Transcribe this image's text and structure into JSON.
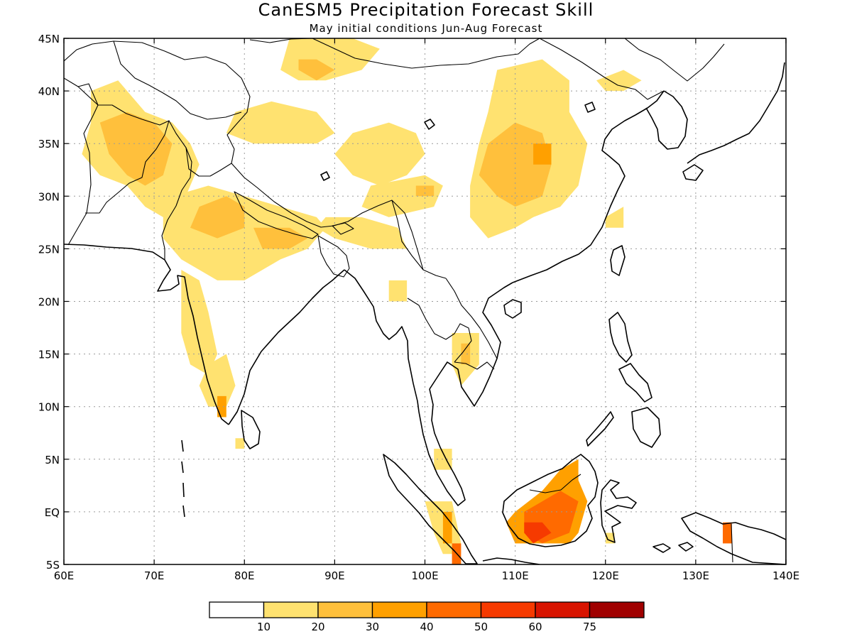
{
  "title": "CanESM5 Precipitation Forecast Skill",
  "subtitle": "May initial conditions  Jun-Aug Forecast",
  "map": {
    "lon_range": [
      60,
      140
    ],
    "lat_range": [
      -5,
      45
    ],
    "lon_ticks": [
      {
        "value": 60,
        "label": "60E"
      },
      {
        "value": 70,
        "label": "70E"
      },
      {
        "value": 80,
        "label": "80E"
      },
      {
        "value": 90,
        "label": "90E"
      },
      {
        "value": 100,
        "label": "100E"
      },
      {
        "value": 110,
        "label": "110E"
      },
      {
        "value": 120,
        "label": "120E"
      },
      {
        "value": 130,
        "label": "130E"
      },
      {
        "value": 140,
        "label": "140E"
      }
    ],
    "lat_ticks": [
      {
        "value": 45,
        "label": "45N"
      },
      {
        "value": 40,
        "label": "40N"
      },
      {
        "value": 35,
        "label": "35N"
      },
      {
        "value": 30,
        "label": "30N"
      },
      {
        "value": 25,
        "label": "25N"
      },
      {
        "value": 20,
        "label": "20N"
      },
      {
        "value": 15,
        "label": "15N"
      },
      {
        "value": 10,
        "label": "10N"
      },
      {
        "value": 5,
        "label": "5N"
      },
      {
        "value": 0,
        "label": "EQ"
      },
      {
        "value": -5,
        "label": "5S"
      }
    ],
    "grid": true
  },
  "legend": {
    "colors": [
      "#ffffff",
      "#ffe270",
      "#ffc03c",
      "#ffa000",
      "#ff6a00",
      "#f63a00",
      "#d81400",
      "#a00000"
    ],
    "labels": [
      "10",
      "20",
      "30",
      "40",
      "50",
      "60",
      "75"
    ]
  },
  "skill_regions": [
    {
      "level": 1,
      "ring": [
        [
          63,
          40
        ],
        [
          66,
          41
        ],
        [
          69,
          38
        ],
        [
          72,
          37
        ],
        [
          74,
          35
        ],
        [
          75,
          33
        ],
        [
          74,
          31
        ],
        [
          73,
          29
        ],
        [
          71,
          28
        ],
        [
          69,
          29
        ],
        [
          67,
          31
        ],
        [
          64,
          32
        ],
        [
          62,
          34
        ],
        [
          63,
          37
        ]
      ]
    },
    {
      "level": 2,
      "ring": [
        [
          64,
          37
        ],
        [
          67,
          38
        ],
        [
          70,
          37
        ],
        [
          72,
          35
        ],
        [
          71,
          32
        ],
        [
          69,
          31
        ],
        [
          67,
          32
        ],
        [
          65,
          34
        ]
      ]
    },
    {
      "level": 1,
      "ring": [
        [
          72,
          30
        ],
        [
          76,
          31
        ],
        [
          80,
          30
        ],
        [
          84,
          29
        ],
        [
          88,
          28
        ],
        [
          89,
          27
        ],
        [
          87,
          25
        ],
        [
          84,
          24
        ],
        [
          80,
          22
        ],
        [
          77,
          22
        ],
        [
          73,
          24
        ],
        [
          71,
          26
        ],
        [
          71,
          28
        ]
      ]
    },
    {
      "level": 2,
      "ring": [
        [
          75,
          29
        ],
        [
          78,
          30
        ],
        [
          80,
          29
        ],
        [
          80,
          27
        ],
        [
          77,
          26
        ],
        [
          74,
          27
        ]
      ]
    },
    {
      "level": 2,
      "ring": [
        [
          81,
          27
        ],
        [
          85,
          27
        ],
        [
          87,
          26
        ],
        [
          85,
          25
        ],
        [
          82,
          25
        ]
      ]
    },
    {
      "level": 1,
      "ring": [
        [
          73,
          23
        ],
        [
          75,
          22
        ],
        [
          76,
          19
        ],
        [
          77,
          15
        ],
        [
          76,
          13
        ],
        [
          74,
          14
        ],
        [
          73,
          17
        ],
        [
          73,
          21
        ]
      ]
    },
    {
      "level": 1,
      "ring": [
        [
          76,
          14
        ],
        [
          78,
          15
        ],
        [
          79,
          12
        ],
        [
          78,
          10
        ],
        [
          76,
          10
        ],
        [
          75,
          12
        ]
      ]
    },
    {
      "level": 3,
      "ring": [
        [
          77,
          11
        ],
        [
          78,
          11
        ],
        [
          78,
          9
        ],
        [
          77,
          9
        ]
      ]
    },
    {
      "level": 1,
      "ring": [
        [
          79,
          7
        ],
        [
          80,
          7
        ],
        [
          80,
          6
        ],
        [
          79,
          6
        ]
      ]
    },
    {
      "level": 1,
      "ring": [
        [
          85,
          45
        ],
        [
          92,
          45
        ],
        [
          95,
          44
        ],
        [
          93,
          42
        ],
        [
          89,
          41
        ],
        [
          86,
          41
        ],
        [
          84,
          42
        ]
      ]
    },
    {
      "level": 2,
      "ring": [
        [
          86,
          43
        ],
        [
          88,
          43
        ],
        [
          90,
          42
        ],
        [
          88,
          41
        ],
        [
          86,
          42
        ]
      ]
    },
    {
      "level": 1,
      "ring": [
        [
          79,
          38
        ],
        [
          83,
          39
        ],
        [
          88,
          38
        ],
        [
          90,
          36
        ],
        [
          88,
          35
        ],
        [
          84,
          35
        ],
        [
          81,
          35
        ],
        [
          78,
          36
        ]
      ]
    },
    {
      "level": 1,
      "ring": [
        [
          92,
          36
        ],
        [
          96,
          37
        ],
        [
          99,
          36
        ],
        [
          100,
          34
        ],
        [
          98,
          32
        ],
        [
          95,
          31
        ],
        [
          92,
          32
        ],
        [
          90,
          34
        ]
      ]
    },
    {
      "level": 1,
      "ring": [
        [
          94,
          31
        ],
        [
          100,
          32
        ],
        [
          102,
          31
        ],
        [
          101,
          29
        ],
        [
          96,
          28
        ],
        [
          93,
          29
        ]
      ]
    },
    {
      "level": 2,
      "ring": [
        [
          99,
          31
        ],
        [
          101,
          31
        ],
        [
          101,
          30
        ],
        [
          99,
          30
        ]
      ]
    },
    {
      "level": 1,
      "ring": [
        [
          89,
          28
        ],
        [
          93,
          28
        ],
        [
          97,
          27
        ],
        [
          98,
          25
        ],
        [
          94,
          25
        ],
        [
          90,
          26
        ],
        [
          88,
          27
        ]
      ]
    },
    {
      "level": 1,
      "ring": [
        [
          96,
          22
        ],
        [
          98,
          22
        ],
        [
          98,
          20
        ],
        [
          96,
          20
        ]
      ]
    },
    {
      "level": 1,
      "ring": [
        [
          108,
          42
        ],
        [
          113,
          43
        ],
        [
          116,
          41
        ],
        [
          116,
          38
        ],
        [
          118,
          35
        ],
        [
          117,
          31
        ],
        [
          115,
          29
        ],
        [
          112,
          28
        ],
        [
          110,
          27
        ],
        [
          107,
          26
        ],
        [
          105,
          28
        ],
        [
          105,
          31
        ],
        [
          106,
          35
        ],
        [
          107,
          38
        ]
      ]
    },
    {
      "level": 2,
      "ring": [
        [
          107,
          35
        ],
        [
          110,
          37
        ],
        [
          113,
          36
        ],
        [
          114,
          33
        ],
        [
          113,
          30
        ],
        [
          110,
          29
        ],
        [
          108,
          30
        ],
        [
          106,
          32
        ]
      ]
    },
    {
      "level": 3,
      "ring": [
        [
          112,
          35
        ],
        [
          114,
          35
        ],
        [
          114,
          33
        ],
        [
          112,
          33
        ]
      ]
    },
    {
      "level": 1,
      "ring": [
        [
          119,
          41
        ],
        [
          122,
          42
        ],
        [
          124,
          41
        ],
        [
          122,
          40
        ],
        [
          120,
          40
        ]
      ]
    },
    {
      "level": 1,
      "ring": [
        [
          120,
          28
        ],
        [
          122,
          29
        ],
        [
          122,
          27
        ],
        [
          120,
          27
        ]
      ]
    },
    {
      "level": 1,
      "ring": [
        [
          103,
          17
        ],
        [
          106,
          17
        ],
        [
          106,
          14
        ],
        [
          104,
          12
        ],
        [
          103,
          14
        ]
      ]
    },
    {
      "level": 2,
      "ring": [
        [
          104,
          16
        ],
        [
          105,
          16
        ],
        [
          105,
          14
        ],
        [
          104,
          14
        ]
      ]
    },
    {
      "level": 1,
      "ring": [
        [
          101,
          6
        ],
        [
          103,
          6
        ],
        [
          103,
          4
        ],
        [
          101,
          4
        ]
      ]
    },
    {
      "level": 1,
      "ring": [
        [
          100,
          1
        ],
        [
          103,
          1
        ],
        [
          104,
          -3
        ],
        [
          104,
          -4
        ],
        [
          102,
          -4
        ],
        [
          101,
          -2
        ]
      ]
    },
    {
      "level": 3,
      "ring": [
        [
          102,
          0
        ],
        [
          103,
          0
        ],
        [
          103,
          -3
        ],
        [
          102,
          -3
        ]
      ]
    },
    {
      "level": 4,
      "ring": [
        [
          103,
          -3
        ],
        [
          104,
          -3
        ],
        [
          104,
          -5
        ],
        [
          103,
          -5
        ]
      ]
    },
    {
      "level": 3,
      "ring": [
        [
          110,
          0
        ],
        [
          113,
          2
        ],
        [
          115,
          4
        ],
        [
          117,
          5
        ],
        [
          117,
          3
        ],
        [
          118,
          1
        ],
        [
          117,
          -2
        ],
        [
          116,
          -3
        ],
        [
          113,
          -3
        ],
        [
          110,
          -3
        ],
        [
          109,
          -1
        ]
      ]
    },
    {
      "level": 4,
      "ring": [
        [
          111,
          0
        ],
        [
          113,
          1
        ],
        [
          115,
          2
        ],
        [
          117,
          1
        ],
        [
          116,
          -2
        ],
        [
          113,
          -3
        ],
        [
          111,
          -2
        ]
      ]
    },
    {
      "level": 5,
      "ring": [
        [
          111,
          -1
        ],
        [
          113,
          -1
        ],
        [
          114,
          -2
        ],
        [
          112,
          -3
        ],
        [
          111,
          -2
        ]
      ]
    },
    {
      "level": 1,
      "ring": [
        [
          120,
          -2
        ],
        [
          121,
          -2
        ],
        [
          121,
          -3
        ],
        [
          120,
          -3
        ]
      ]
    },
    {
      "level": 4,
      "ring": [
        [
          133,
          -1
        ],
        [
          134,
          -1
        ],
        [
          134,
          -3
        ],
        [
          133,
          -3
        ]
      ]
    }
  ]
}
